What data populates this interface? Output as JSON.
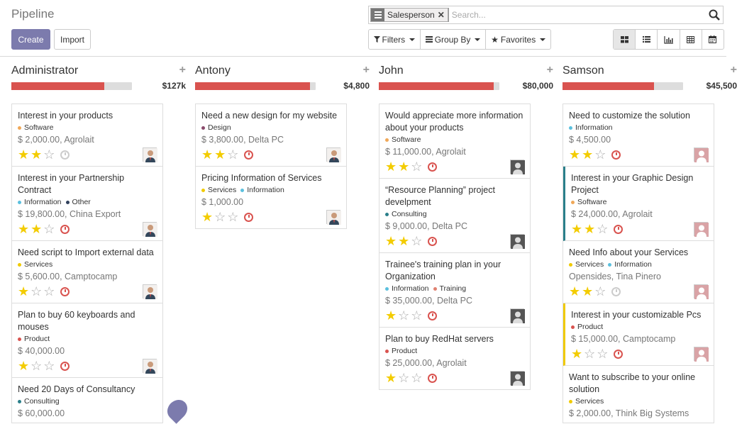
{
  "page": {
    "title": "Pipeline",
    "create_label": "Create",
    "import_label": "Import"
  },
  "search": {
    "facet_label": "Salesperson",
    "placeholder": "Search..."
  },
  "filters": {
    "filters_label": "Filters",
    "groupby_label": "Group By",
    "favorites_label": "Favorites"
  },
  "views": [
    "kanban-icon",
    "list-icon",
    "graph-icon",
    "pivot-icon",
    "calendar-icon"
  ],
  "columns": [
    {
      "name": "Administrator",
      "total": "$127k",
      "progress": 0.77,
      "cards": [
        {
          "title": "Interest in your products",
          "tags": [
            {
              "label": "Software",
              "color": "#f0a858"
            }
          ],
          "amount": "$ 2,000.00, Agrolait",
          "stars": 2,
          "activity": "grey",
          "avatar": "person"
        },
        {
          "title": "Interest in your Partnership Contract",
          "tags": [
            {
              "label": "Information",
              "color": "#5bc0de"
            },
            {
              "label": "Other",
              "color": "#30405c"
            }
          ],
          "amount": "$ 19,800.00, China Export",
          "stars": 2,
          "activity": "red",
          "avatar": "person"
        },
        {
          "title": "Need script to Import external data",
          "tags": [
            {
              "label": "Services",
              "color": "#f0ca00"
            }
          ],
          "amount": "$ 5,600.00, Camptocamp",
          "stars": 1,
          "activity": "red",
          "avatar": "person"
        },
        {
          "title": "Plan to buy 60 keyboards and mouses",
          "tags": [
            {
              "label": "Product",
              "color": "#d9534f"
            }
          ],
          "amount": "$ 40,000.00",
          "stars": 1,
          "activity": "red",
          "avatar": "person"
        },
        {
          "title": "Need 20 Days of Consultancy",
          "tags": [
            {
              "label": "Consulting",
              "color": "#2a7f8a"
            }
          ],
          "amount": "$ 60,000.00",
          "stars": 0,
          "activity": "",
          "avatar": ""
        }
      ]
    },
    {
      "name": "Antony",
      "total": "$4,800",
      "progress": 0.95,
      "cards": [
        {
          "title": "Need a new design for my website",
          "tags": [
            {
              "label": "Design",
              "color": "#8a4a6b"
            }
          ],
          "amount": "$ 3,800.00, Delta PC",
          "stars": 2,
          "activity": "red",
          "avatar": "person"
        },
        {
          "title": "Pricing Information of Services",
          "tags": [
            {
              "label": "Services",
              "color": "#f0ca00"
            },
            {
              "label": "Information",
              "color": "#5bc0de"
            }
          ],
          "amount": "$ 1,000.00",
          "stars": 1,
          "activity": "red",
          "avatar": "person"
        }
      ]
    },
    {
      "name": "John",
      "total": "$80,000",
      "progress": 0.95,
      "cards": [
        {
          "title": "Would appreciate more information about your products",
          "tags": [
            {
              "label": "Software",
              "color": "#f0a858"
            }
          ],
          "amount": "$ 11,000.00, Agrolait",
          "stars": 2,
          "activity": "red",
          "avatar": "john"
        },
        {
          "title": "“Resource Planning” project develpment",
          "tags": [
            {
              "label": "Consulting",
              "color": "#2a7f8a"
            }
          ],
          "amount": "$ 9,000.00, Delta PC",
          "stars": 2,
          "activity": "red",
          "avatar": "john"
        },
        {
          "title": "Trainee's training plan in your Organization",
          "tags": [
            {
              "label": "Information",
              "color": "#5bc0de"
            },
            {
              "label": "Training",
              "color": "#e08070"
            }
          ],
          "amount": "$ 35,000.00, Delta PC",
          "stars": 1,
          "activity": "red",
          "avatar": "john"
        },
        {
          "title": "Plan to buy RedHat servers",
          "tags": [
            {
              "label": "Product",
              "color": "#d9534f"
            }
          ],
          "amount": "$ 25,000.00, Agrolait",
          "stars": 1,
          "activity": "red",
          "avatar": "john"
        }
      ]
    },
    {
      "name": "Samson",
      "total": "$45,500",
      "progress": 0.76,
      "cards": [
        {
          "title": "Need to customize the solution",
          "tags": [
            {
              "label": "Information",
              "color": "#5bc0de"
            }
          ],
          "amount": "$ 4,500.00",
          "stars": 2,
          "activity": "red",
          "avatar": "sam"
        },
        {
          "title": "Interest in your Graphic Design Project",
          "tags": [
            {
              "label": "Software",
              "color": "#f0a858"
            }
          ],
          "amount": "$ 24,000.00, Agrolait",
          "stars": 2,
          "activity": "red",
          "avatar": "sam",
          "mark": "teal"
        },
        {
          "title": "Need Info about your Services",
          "tags": [
            {
              "label": "Services",
              "color": "#f0ca00"
            },
            {
              "label": "Information",
              "color": "#5bc0de"
            }
          ],
          "amount": "Opensides, Tina Pinero",
          "stars": 2,
          "activity": "grey",
          "avatar": "sam"
        },
        {
          "title": "Interest in your customizable Pcs",
          "tags": [
            {
              "label": "Product",
              "color": "#d9534f"
            }
          ],
          "amount": "$ 15,000.00, Camptocamp",
          "stars": 1,
          "activity": "red",
          "avatar": "sam",
          "mark": "yellow"
        },
        {
          "title": "Want to subscribe to your online solution",
          "tags": [
            {
              "label": "Services",
              "color": "#f0ca00"
            }
          ],
          "amount": "$ 2,000.00, Think Big Systems",
          "stars": 0,
          "activity": "",
          "avatar": ""
        }
      ]
    }
  ]
}
